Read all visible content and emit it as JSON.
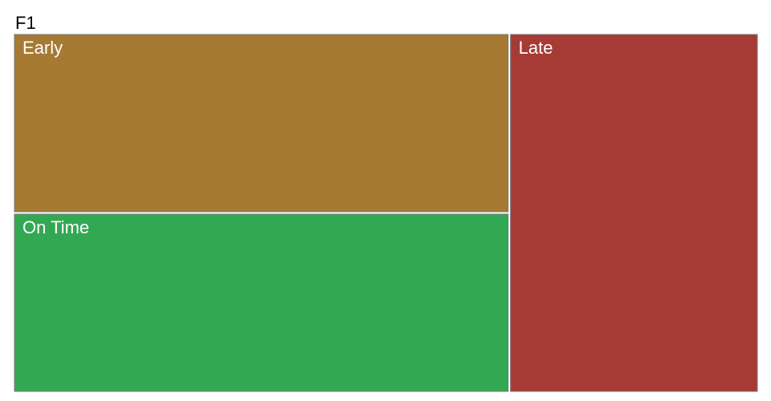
{
  "chart_data": {
    "type": "treemap",
    "title": "F1",
    "grid": false,
    "legend": "none",
    "nodes": [
      {
        "label": "Early",
        "value": 30,
        "color": "#a67a33"
      },
      {
        "label": "On Time",
        "value": 30,
        "color": "#33a853"
      },
      {
        "label": "Late",
        "value": 30,
        "color": "#a63b36"
      }
    ]
  }
}
